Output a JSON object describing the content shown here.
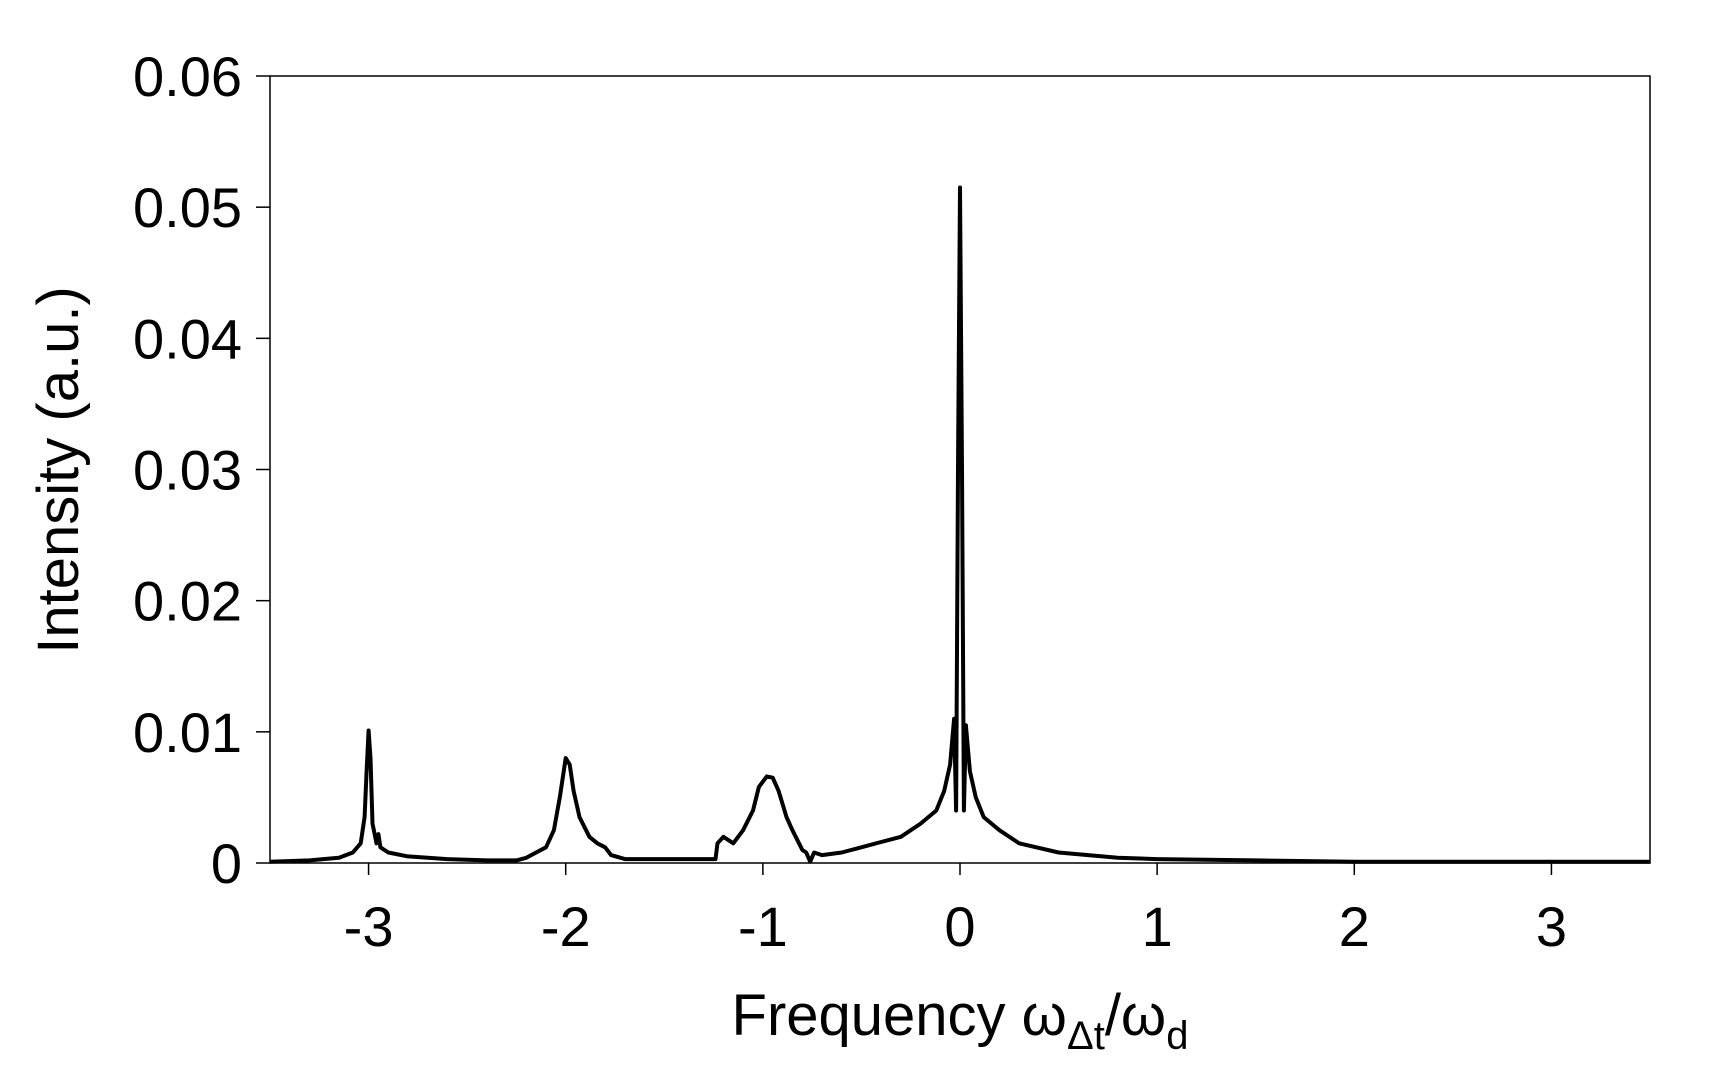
{
  "chart_data": {
    "type": "line",
    "xlabel": "Frequency ω",
    "xlabel_sub1": "Δt",
    "xlabel_mid": "/ω",
    "xlabel_sub2": "d",
    "ylabel": "Intensity (a.u.)",
    "xlim": [
      -3.5,
      3.5
    ],
    "ylim": [
      0,
      0.06
    ],
    "xticks": [
      -3,
      -2,
      -1,
      0,
      1,
      2,
      3
    ],
    "xtick_labels": [
      "-3",
      "-2",
      "-1",
      "0",
      "1",
      "2",
      "3"
    ],
    "yticks": [
      0,
      0.01,
      0.02,
      0.03,
      0.04,
      0.05,
      0.06
    ],
    "ytick_labels": [
      "0",
      "0.01",
      "0.02",
      "0.03",
      "0.04",
      "0.05",
      "0.06"
    ],
    "grid": false,
    "legend": "none",
    "series": [
      {
        "color": "#000000",
        "points": [
          [
            -3.5,
            0.0001
          ],
          [
            -3.3,
            0.0002
          ],
          [
            -3.15,
            0.0004
          ],
          [
            -3.08,
            0.0008
          ],
          [
            -3.04,
            0.0015
          ],
          [
            -3.02,
            0.0035
          ],
          [
            -3.01,
            0.007
          ],
          [
            -3.0,
            0.0101
          ],
          [
            -2.99,
            0.008
          ],
          [
            -2.98,
            0.003
          ],
          [
            -2.96,
            0.0015
          ],
          [
            -2.95,
            0.0022
          ],
          [
            -2.94,
            0.0012
          ],
          [
            -2.9,
            0.0008
          ],
          [
            -2.8,
            0.0005
          ],
          [
            -2.6,
            0.0003
          ],
          [
            -2.4,
            0.0002
          ],
          [
            -2.25,
            0.0002
          ],
          [
            -2.2,
            0.0004
          ],
          [
            -2.15,
            0.0008
          ],
          [
            -2.1,
            0.0012
          ],
          [
            -2.06,
            0.0025
          ],
          [
            -2.03,
            0.005
          ],
          [
            -2.0,
            0.008
          ],
          [
            -1.98,
            0.0075
          ],
          [
            -1.96,
            0.0055
          ],
          [
            -1.93,
            0.0035
          ],
          [
            -1.88,
            0.002
          ],
          [
            -1.84,
            0.0015
          ],
          [
            -1.8,
            0.0012
          ],
          [
            -1.77,
            0.0006
          ],
          [
            -1.7,
            0.0003
          ],
          [
            -1.5,
            0.0003
          ],
          [
            -1.3,
            0.0003
          ],
          [
            -1.24,
            0.0003
          ],
          [
            -1.23,
            0.0015
          ],
          [
            -1.2,
            0.002
          ],
          [
            -1.15,
            0.0015
          ],
          [
            -1.1,
            0.0025
          ],
          [
            -1.05,
            0.004
          ],
          [
            -1.02,
            0.0058
          ],
          [
            -0.98,
            0.0066
          ],
          [
            -0.95,
            0.0065
          ],
          [
            -0.92,
            0.0055
          ],
          [
            -0.88,
            0.0035
          ],
          [
            -0.85,
            0.0025
          ],
          [
            -0.8,
            0.001
          ],
          [
            -0.78,
            0.0008
          ],
          [
            -0.76,
            0.0001
          ],
          [
            -0.74,
            0.0008
          ],
          [
            -0.7,
            0.0006
          ],
          [
            -0.6,
            0.0008
          ],
          [
            -0.5,
            0.0012
          ],
          [
            -0.4,
            0.0016
          ],
          [
            -0.3,
            0.002
          ],
          [
            -0.2,
            0.003
          ],
          [
            -0.12,
            0.004
          ],
          [
            -0.08,
            0.0055
          ],
          [
            -0.05,
            0.0075
          ],
          [
            -0.03,
            0.011
          ],
          [
            -0.02,
            0.004
          ],
          [
            -0.01,
            0.03
          ],
          [
            0.0,
            0.0515
          ],
          [
            0.01,
            0.03
          ],
          [
            0.02,
            0.004
          ],
          [
            0.03,
            0.0105
          ],
          [
            0.05,
            0.007
          ],
          [
            0.08,
            0.005
          ],
          [
            0.12,
            0.0035
          ],
          [
            0.2,
            0.0025
          ],
          [
            0.3,
            0.0015
          ],
          [
            0.5,
            0.0008
          ],
          [
            0.8,
            0.0004
          ],
          [
            1.0,
            0.0003
          ],
          [
            1.5,
            0.0002
          ],
          [
            2.0,
            0.0001
          ],
          [
            2.5,
            0.0001
          ],
          [
            3.0,
            0.0001
          ],
          [
            3.5,
            0.0001
          ]
        ]
      }
    ]
  }
}
